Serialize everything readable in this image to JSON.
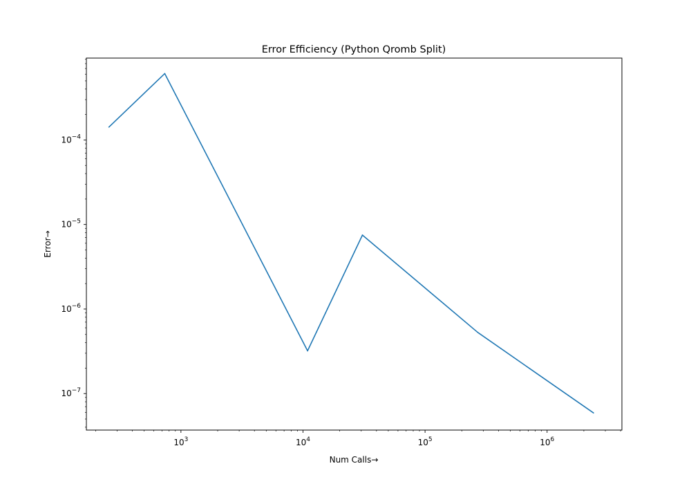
{
  "chart_data": {
    "type": "line",
    "title": "Error Efficiency (Python Qromb Split)",
    "xlabel": "Num Calls→",
    "ylabel": "Error→",
    "xscale": "log",
    "yscale": "log",
    "xlim": [
      168,
      4100000
    ],
    "ylim": [
      3.7e-08,
      0.00093
    ],
    "grid": false,
    "x_major_ticks": [
      {
        "value": 1000,
        "base": "10",
        "exp": "3"
      },
      {
        "value": 10000,
        "base": "10",
        "exp": "4"
      },
      {
        "value": 100000,
        "base": "10",
        "exp": "5"
      },
      {
        "value": 1000000,
        "base": "10",
        "exp": "6"
      }
    ],
    "y_major_ticks": [
      {
        "value": 1e-07,
        "base": "10",
        "exp": "−7"
      },
      {
        "value": 1e-06,
        "base": "10",
        "exp": "−6"
      },
      {
        "value": 1e-05,
        "base": "10",
        "exp": "−5"
      },
      {
        "value": 0.0001,
        "base": "10",
        "exp": "−4"
      }
    ],
    "series": [
      {
        "color": "#1f77b4",
        "x": [
          257,
          737,
          10900,
          30700,
          270000,
          2400000
        ],
        "y": [
          0.000142,
          0.00061,
          3.2e-07,
          7.5e-06,
          5.3e-07,
          5.9e-08
        ]
      }
    ]
  }
}
